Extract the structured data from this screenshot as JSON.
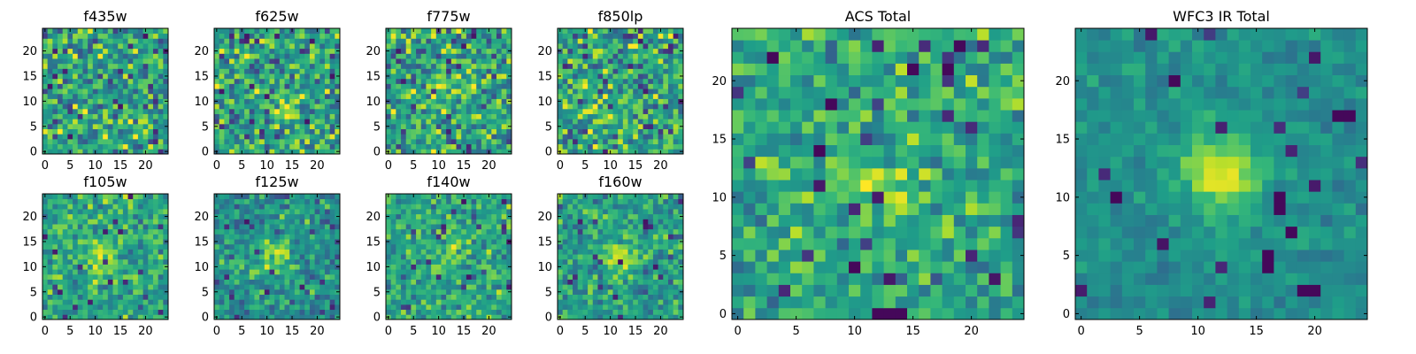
{
  "figure": {
    "colormap": "viridis",
    "colors": {
      "background": "#ffffff",
      "axes": "#000000"
    }
  },
  "chart_data": [
    {
      "type": "heatmap",
      "title": "f435w",
      "grid": false,
      "xlim": [
        0,
        24
      ],
      "ylim": [
        0,
        24
      ],
      "xticks": [
        "0",
        "5",
        "10",
        "15",
        "20"
      ],
      "yticks": [
        "0",
        "5",
        "10",
        "15",
        "20"
      ],
      "image_size": [
        25,
        25
      ],
      "mean_level": 0.58,
      "blob": null,
      "noise": "high"
    },
    {
      "type": "heatmap",
      "title": "f625w",
      "grid": false,
      "xlim": [
        0,
        24
      ],
      "ylim": [
        0,
        24
      ],
      "xticks": [
        "0",
        "5",
        "10",
        "15",
        "20"
      ],
      "yticks": [
        "0",
        "5",
        "10",
        "15",
        "20"
      ],
      "image_size": [
        25,
        25
      ],
      "mean_level": 0.57,
      "blob": [
        14,
        8,
        0.12
      ],
      "noise": "high"
    },
    {
      "type": "heatmap",
      "title": "f775w",
      "grid": false,
      "xlim": [
        0,
        24
      ],
      "ylim": [
        0,
        24
      ],
      "xticks": [
        "0",
        "5",
        "10",
        "15",
        "20"
      ],
      "yticks": [
        "0",
        "5",
        "10",
        "15",
        "20"
      ],
      "image_size": [
        25,
        25
      ],
      "mean_level": 0.58,
      "blob": [
        12,
        13,
        0.2
      ],
      "noise": "high"
    },
    {
      "type": "heatmap",
      "title": "f850lp",
      "grid": false,
      "xlim": [
        0,
        24
      ],
      "ylim": [
        0,
        24
      ],
      "xticks": [
        "0",
        "5",
        "10",
        "15",
        "20"
      ],
      "yticks": [
        "0",
        "5",
        "10",
        "15",
        "20"
      ],
      "image_size": [
        25,
        25
      ],
      "mean_level": 0.57,
      "blob": [
        8,
        8,
        0.15
      ],
      "noise": "high"
    },
    {
      "type": "heatmap",
      "title": "f105w",
      "grid": false,
      "xlim": [
        0,
        24
      ],
      "ylim": [
        0,
        24
      ],
      "xticks": [
        "0",
        "5",
        "10",
        "15",
        "20"
      ],
      "yticks": [
        "0",
        "5",
        "10",
        "15",
        "20"
      ],
      "image_size": [
        25,
        25
      ],
      "mean_level": 0.6,
      "blob": [
        11,
        11,
        0.25
      ],
      "noise": "medium"
    },
    {
      "type": "heatmap",
      "title": "f125w",
      "grid": false,
      "xlim": [
        0,
        24
      ],
      "ylim": [
        0,
        24
      ],
      "xticks": [
        "0",
        "5",
        "10",
        "15",
        "20"
      ],
      "yticks": [
        "0",
        "5",
        "10",
        "15",
        "20"
      ],
      "image_size": [
        25,
        25
      ],
      "mean_level": 0.5,
      "blob": [
        12,
        12,
        0.4
      ],
      "noise": "medium"
    },
    {
      "type": "heatmap",
      "title": "f140w",
      "grid": false,
      "xlim": [
        0,
        24
      ],
      "ylim": [
        0,
        24
      ],
      "xticks": [
        "0",
        "5",
        "10",
        "15",
        "20"
      ],
      "yticks": [
        "0",
        "5",
        "10",
        "15",
        "20"
      ],
      "image_size": [
        25,
        25
      ],
      "mean_level": 0.57,
      "blob": [
        12,
        12,
        0.25
      ],
      "noise": "medium"
    },
    {
      "type": "heatmap",
      "title": "f160w",
      "grid": false,
      "xlim": [
        0,
        24
      ],
      "ylim": [
        0,
        24
      ],
      "xticks": [
        "0",
        "5",
        "10",
        "15",
        "20"
      ],
      "yticks": [
        "0",
        "5",
        "10",
        "15",
        "20"
      ],
      "image_size": [
        25,
        25
      ],
      "mean_level": 0.55,
      "blob": [
        12,
        12,
        0.35
      ],
      "noise": "medium"
    },
    {
      "type": "heatmap",
      "title": "ACS Total",
      "grid": false,
      "xlim": [
        0,
        24
      ],
      "ylim": [
        0,
        24
      ],
      "xticks": [
        "0",
        "5",
        "10",
        "15",
        "20"
      ],
      "yticks": [
        "0",
        "5",
        "10",
        "15",
        "20"
      ],
      "image_size": [
        25,
        25
      ],
      "mean_level": 0.6,
      "blob": [
        12,
        11,
        0.2
      ],
      "noise": "medium",
      "dark_pixels": [
        [
          8,
          18
        ],
        [
          3,
          22
        ],
        [
          18,
          21
        ],
        [
          19,
          23
        ],
        [
          10,
          4
        ],
        [
          12,
          0
        ],
        [
          13,
          0
        ],
        [
          14,
          0
        ],
        [
          7,
          14
        ],
        [
          15,
          21
        ]
      ]
    },
    {
      "type": "heatmap",
      "title": "WFC3 IR Total",
      "grid": false,
      "xlim": [
        0,
        24
      ],
      "ylim": [
        0,
        24
      ],
      "xticks": [
        "0",
        "5",
        "10",
        "15",
        "20"
      ],
      "yticks": [
        "0",
        "5",
        "10",
        "15",
        "20"
      ],
      "image_size": [
        25,
        25
      ],
      "mean_level": 0.5,
      "blob": [
        12,
        12,
        0.5
      ],
      "noise": "low",
      "dark_pixels": [
        [
          8,
          20
        ],
        [
          3,
          10
        ],
        [
          17,
          9
        ],
        [
          17,
          10
        ],
        [
          16,
          4
        ],
        [
          16,
          5
        ],
        [
          19,
          2
        ],
        [
          20,
          2
        ],
        [
          22,
          17
        ],
        [
          23,
          17
        ],
        [
          18,
          7
        ]
      ]
    }
  ]
}
